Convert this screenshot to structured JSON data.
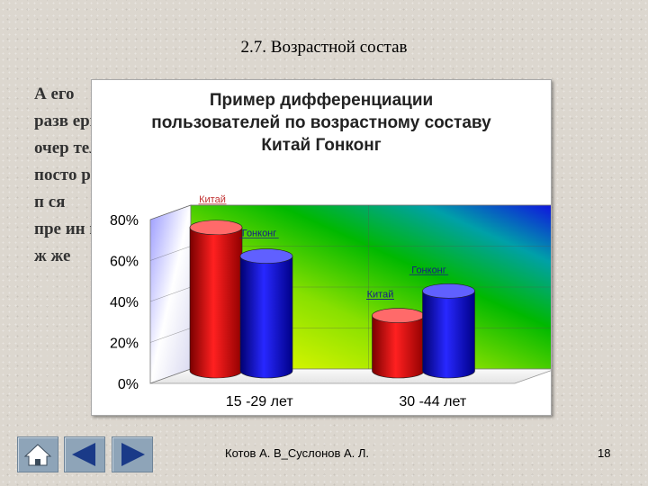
{
  "slide": {
    "title": "2.7. Возрастной состав",
    "background_lines": [
      "А                                                                   его",
      "разв                                                              ервую",
      "очер                                                             телей",
      "посто                                                             ршего",
      "п                                                                 ся",
      "пре                                                               ин и",
      "ж                                                                 же"
    ],
    "footer_author": "Котов А. В_Суслонов А. Л.",
    "page_number": "18"
  },
  "nav": {
    "home_icon": "home-icon",
    "prev_icon": "triangle-left-icon",
    "next_icon": "triangle-right-icon"
  },
  "chart_data": {
    "type": "bar",
    "title_lines": [
      "Пример дифференциации",
      "пользователей по возрастному составу",
      "Китай Гонконг"
    ],
    "categories": [
      "15 -29 лет",
      "30 -44 лет"
    ],
    "series": [
      {
        "name": "Китай",
        "values": [
          70,
          27
        ],
        "color": "#e01010"
      },
      {
        "name": "Гонконг",
        "values": [
          56,
          39
        ],
        "color": "#1a1adc"
      }
    ],
    "data_labels": [
      {
        "text": "Китай",
        "color": "#c03030"
      },
      {
        "text": "Гонконг",
        "color": "#1a1a8a"
      },
      {
        "text": "Гонконг",
        "color": "#1a1a8a"
      },
      {
        "text": "Китай",
        "color": "#1a1a8a"
      }
    ],
    "y_ticks": [
      "0%",
      "20%",
      "40%",
      "60%",
      "80%"
    ],
    "ylim": [
      0,
      80
    ],
    "grid": true,
    "style": "3d-cylinder"
  }
}
